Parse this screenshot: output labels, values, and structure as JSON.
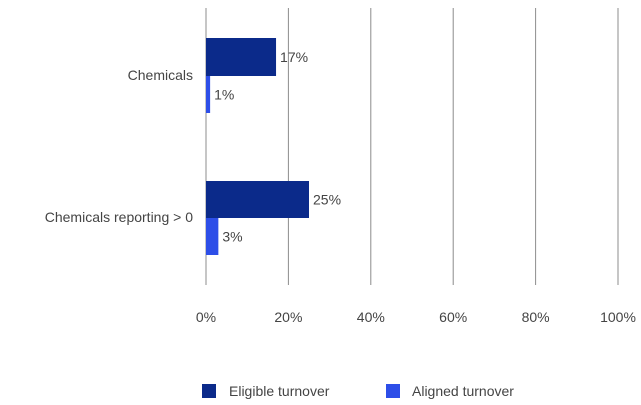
{
  "chart_data": {
    "type": "bar",
    "orientation": "horizontal",
    "categories": [
      "Chemicals",
      "Chemicals reporting > 0"
    ],
    "series": [
      {
        "name": "Eligible turnover",
        "values": [
          17,
          25
        ],
        "labels": [
          "17%",
          "25%"
        ],
        "color": "#0b2a8a"
      },
      {
        "name": "Aligned turnover",
        "values": [
          1,
          3
        ],
        "labels": [
          "1%",
          "3%"
        ],
        "color": "#2d4ee8"
      }
    ],
    "xlim": [
      0,
      100
    ],
    "xticks": [
      0,
      20,
      40,
      60,
      80,
      100
    ],
    "xtick_labels": [
      "0%",
      "20%",
      "40%",
      "60%",
      "80%",
      "100%"
    ],
    "title": "",
    "xlabel": "",
    "ylabel": "",
    "grid": "vertical",
    "legend": "bottom-center"
  }
}
